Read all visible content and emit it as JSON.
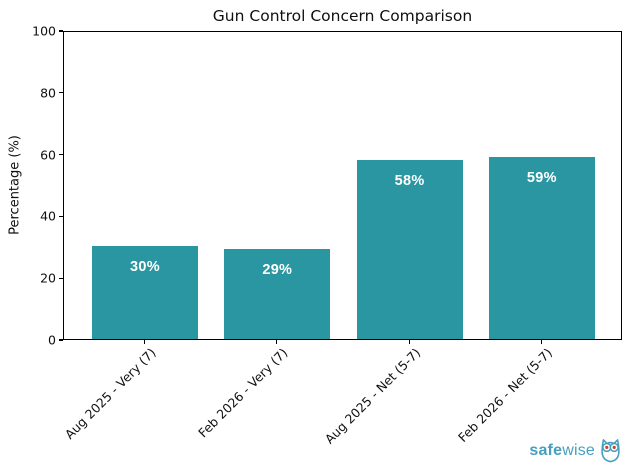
{
  "chart_data": {
    "type": "bar",
    "title": "Gun Control Concern Comparison",
    "categories": [
      "Aug 2025 - Very (7)",
      "Feb 2026 - Very (7)",
      "Aug 2025 - Net (5-7)",
      "Feb 2026 - Net (5-7)"
    ],
    "values": [
      30,
      29,
      58,
      59
    ],
    "bar_labels": [
      "30%",
      "29%",
      "58%",
      "59%"
    ],
    "xlabel": "",
    "ylabel": "Percentage (%)",
    "ylim": [
      0,
      100
    ],
    "yticks": [
      0,
      20,
      40,
      60,
      80,
      100
    ],
    "grid": false,
    "legend": null,
    "bar_color": "#2a96a2",
    "bar_label_color": "#ffffff",
    "axis_color": "#000000"
  },
  "branding": {
    "logo_bold": "safe",
    "logo_regular": "wise",
    "logo_color": "#46a0bd",
    "owl_eye_color": "#c8452f",
    "owl_icon": "owl-icon"
  }
}
